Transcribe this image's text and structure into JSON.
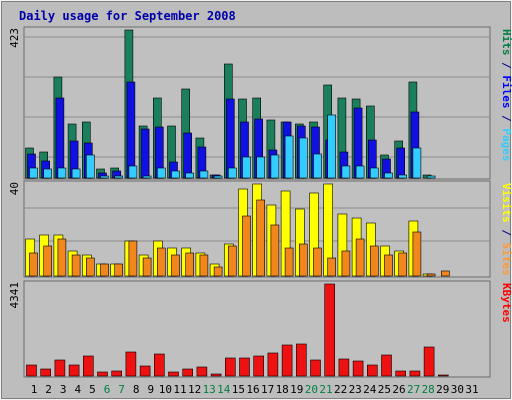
{
  "chart_data": {
    "type": "bar",
    "title": "Daily usage for September 2008",
    "days": [
      "1",
      "2",
      "3",
      "4",
      "5",
      "6",
      "7",
      "8",
      "9",
      "10",
      "11",
      "12",
      "13",
      "14",
      "15",
      "16",
      "17",
      "18",
      "19",
      "20",
      "21",
      "22",
      "23",
      "24",
      "25",
      "26",
      "27",
      "28",
      "29",
      "30",
      "31"
    ],
    "weekend_days": [
      "6",
      "7",
      "13",
      "14",
      "20",
      "21",
      "27",
      "28"
    ],
    "panels": [
      {
        "id": "top",
        "max_label": "423",
        "ymax": 423,
        "labels": [
          {
            "text": "Pages",
            "color": "#33ccff"
          },
          {
            "text": " / ",
            "color": "#000080"
          },
          {
            "text": "Files",
            "color": "#0000ff"
          },
          {
            "text": " / ",
            "color": "#000080"
          },
          {
            "text": "Hits",
            "color": "#008040"
          }
        ],
        "series": [
          {
            "name": "Hits",
            "color": "#1a7f5a",
            "values": [
              85,
              75,
              290,
              155,
              160,
              25,
              30,
              423,
              150,
              230,
              150,
              255,
              115,
              10,
              325,
              225,
              230,
              165,
              160,
              155,
              160,
              265,
              230,
              225,
              205,
              65,
              105,
              275,
              10,
              0,
              0
            ]
          },
          {
            "name": "Files",
            "color": "#1010e0",
            "values": [
              70,
              50,
              230,
              105,
              100,
              15,
              20,
              275,
              140,
              145,
              45,
              130,
              90,
              8,
              225,
              160,
              170,
              80,
              160,
              150,
              145,
              110,
              75,
              200,
              110,
              55,
              85,
              190,
              0,
              0,
              0
            ]
          },
          {
            "name": "Pages",
            "color": "#33ccff",
            "values": [
              30,
              25,
              30,
              25,
              65,
              5,
              5,
              35,
              5,
              30,
              20,
              15,
              20,
              5,
              30,
              60,
              60,
              65,
              120,
              115,
              70,
              180,
              35,
              35,
              30,
              15,
              10,
              85,
              5,
              0,
              0
            ]
          }
        ]
      },
      {
        "id": "middle",
        "max_label": "40",
        "ymax": 40,
        "labels": [
          {
            "text": "Sites",
            "color": "#ff9933"
          },
          {
            "text": " / ",
            "color": "#000080"
          },
          {
            "text": "Visits",
            "color": "#ffff00"
          }
        ],
        "series": [
          {
            "name": "Visits",
            "color": "#ffff00",
            "values": [
              16,
              18,
              18,
              11,
              9,
              5,
              5,
              15,
              9,
              15,
              12,
              12,
              10,
              5,
              14,
              38,
              40,
              31,
              37,
              29,
              36,
              40,
              27,
              25,
              23,
              13,
              11,
              24,
              1,
              0,
              0
            ]
          },
          {
            "name": "Sites",
            "color": "#f0861c",
            "values": [
              10,
              13,
              16,
              9,
              8,
              5,
              5,
              15,
              8,
              12,
              9,
              10,
              9,
              4,
              13,
              26,
              33,
              22,
              12,
              14,
              12,
              8,
              11,
              16,
              13,
              9,
              10,
              19,
              1,
              2,
              0
            ]
          }
        ]
      },
      {
        "id": "bottom",
        "max_label": "4341",
        "ymax": 4341,
        "labels": [
          {
            "text": "KBytes",
            "color": "#ff0000"
          }
        ],
        "series": [
          {
            "name": "KBytes",
            "color": "#ee1111",
            "values": [
              500,
              350,
              750,
              500,
              950,
              180,
              250,
              1150,
              450,
              1050,
              180,
              350,
              420,
              100,
              850,
              850,
              950,
              1100,
              1450,
              1500,
              750,
              4341,
              800,
              700,
              500,
              1000,
              250,
              250,
              1350,
              50,
              0
            ]
          }
        ]
      }
    ]
  }
}
